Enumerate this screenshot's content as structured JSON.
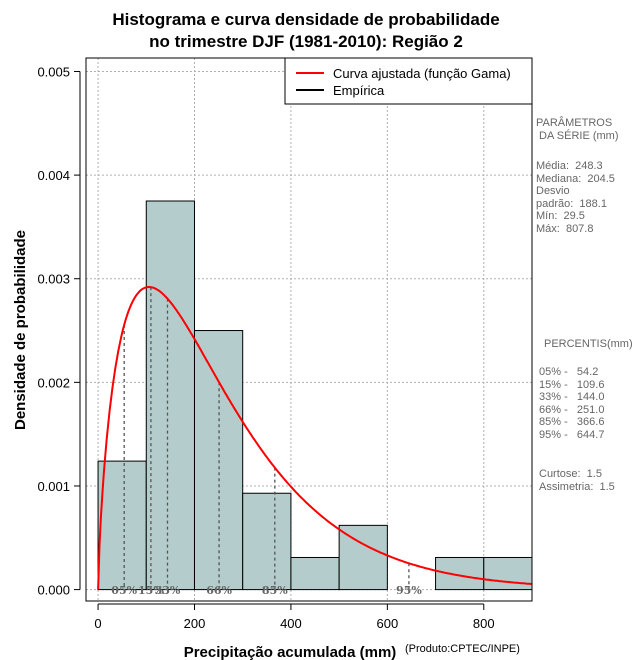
{
  "chart_data": {
    "type": "bar",
    "title_line1": "Histograma e curva densidade de probabilidade",
    "title_line2": "no trimestre DJF (1981-2010): Região 2",
    "xlabel": "Precipitação acumulada (mm)",
    "ylabel": "Densidade de probabilidade",
    "credit": "(Produto:CPTEC/INPE)",
    "xlim": [
      -25,
      900
    ],
    "ylim": [
      -0.00011,
      0.00513
    ],
    "x_ticks": [
      0,
      200,
      400,
      600,
      800
    ],
    "x_tick_labels": [
      "0",
      "200",
      "400",
      "600",
      "800"
    ],
    "y_ticks": [
      0,
      0.001,
      0.002,
      0.003,
      0.004,
      0.005
    ],
    "y_tick_labels": [
      "0.000",
      "0.001",
      "0.002",
      "0.003",
      "0.004",
      "0.005"
    ],
    "grid": true,
    "bins": [
      {
        "start": 0,
        "end": 100,
        "density": 0.00124
      },
      {
        "start": 100,
        "end": 200,
        "density": 0.00375
      },
      {
        "start": 200,
        "end": 300,
        "density": 0.0025
      },
      {
        "start": 300,
        "end": 400,
        "density": 0.00093
      },
      {
        "start": 400,
        "end": 500,
        "density": 0.00031
      },
      {
        "start": 500,
        "end": 600,
        "density": 0.00062
      },
      {
        "start": 600,
        "end": 700,
        "density": 0.0
      },
      {
        "start": 700,
        "end": 800,
        "density": 0.00031
      },
      {
        "start": 800,
        "end": 900,
        "density": 0.00031
      }
    ],
    "bar_color": "#b4cccc",
    "curve": {
      "name": "Curva ajustada (função Gama)",
      "color": "#ff0000",
      "shape": 1.742,
      "rate": 0.00702
    },
    "legend": [
      {
        "label": "Curva ajustada (função Gama)",
        "color": "#ff0000"
      },
      {
        "label": "Empírica",
        "color": "#000000"
      }
    ],
    "legend_position": "top-right",
    "percentile_markers": [
      {
        "label": "05%",
        "value": 54.2
      },
      {
        "label": "15%",
        "value": 109.6
      },
      {
        "label": "33%",
        "value": 144.0
      },
      {
        "label": "66%",
        "value": 251.0
      },
      {
        "label": "85%",
        "value": 366.6
      },
      {
        "label": "95%",
        "value": 644.7
      }
    ]
  },
  "side_panel": {
    "params_title": "PARÂMETROS\n DA SÉRIE (mm)",
    "params_lines": "Média:  248.3\nMediana:  204.5\nDesvio\npadrão:  188.1\nMín:  29.5\nMáx:  807.8",
    "percentis_title": "PERCENTIS(mm)",
    "percentis_lines": "05% -   54.2\n15% -   109.6\n33% -   144.0\n66% -   251.0\n85% -   366.6\n95% -   644.7",
    "stats_lines": "Curtose:  1.5\nAssimetria:  1.5"
  }
}
